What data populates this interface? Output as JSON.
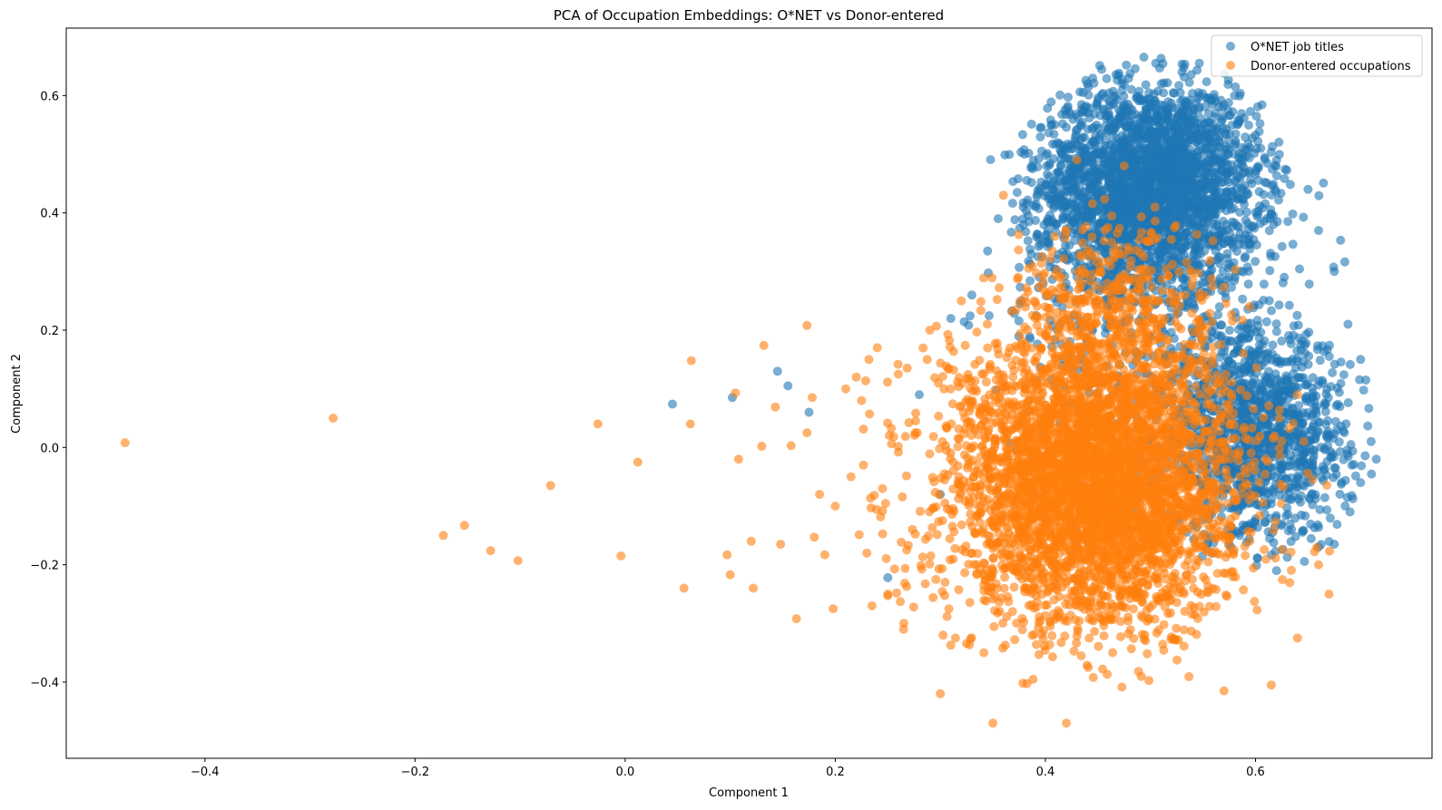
{
  "chart_data": {
    "type": "scatter",
    "title": "PCA of Occupation Embeddings: O*NET vs Donor-entered",
    "xlabel": "Component 1",
    "ylabel": "Component 2",
    "xlim": [
      -0.532,
      0.768
    ],
    "ylim": [
      -0.53,
      0.715
    ],
    "xticks": [
      -0.4,
      -0.2,
      0.0,
      0.2,
      0.4,
      0.6
    ],
    "xtick_labels": [
      "−0.4",
      "−0.2",
      "0.0",
      "0.2",
      "0.4",
      "0.6"
    ],
    "yticks": [
      -0.4,
      -0.2,
      0.0,
      0.2,
      0.4,
      0.6
    ],
    "ytick_labels": [
      "−0.4",
      "−0.2",
      "0.0",
      "0.2",
      "0.4",
      "0.6"
    ],
    "grid": false,
    "legend_position": "top-right",
    "marker_alpha": 0.6,
    "series": [
      {
        "name": "O*NET job titles",
        "color": "#1f77b4",
        "points": [
          [
            0.045,
            0.074
          ],
          [
            0.102,
            0.085
          ],
          [
            0.145,
            0.13
          ],
          [
            0.155,
            0.105
          ],
          [
            0.175,
            0.06
          ],
          [
            0.25,
            -0.222
          ],
          [
            0.31,
            0.22
          ],
          [
            0.33,
            0.26
          ],
          [
            0.345,
            0.335
          ],
          [
            0.355,
            0.39
          ],
          [
            0.38,
            0.5
          ],
          [
            0.395,
            0.545
          ],
          [
            0.44,
            0.62
          ],
          [
            0.47,
            0.638
          ],
          [
            0.505,
            0.655
          ],
          [
            0.53,
            0.64
          ],
          [
            0.58,
            0.6
          ],
          [
            0.605,
            0.51
          ],
          [
            0.62,
            0.49
          ],
          [
            0.65,
            0.44
          ],
          [
            0.66,
            0.37
          ],
          [
            0.675,
            0.3
          ],
          [
            0.688,
            0.21
          ],
          [
            0.7,
            0.15
          ],
          [
            0.705,
            0.115
          ],
          [
            0.71,
            0.01
          ],
          [
            0.715,
            -0.02
          ],
          [
            0.7,
            -0.06
          ],
          [
            0.69,
            -0.11
          ],
          [
            0.675,
            -0.165
          ],
          [
            0.66,
            -0.17
          ],
          [
            0.62,
            -0.21
          ],
          [
            0.3,
            -0.08
          ],
          [
            0.28,
            0.09
          ]
        ],
        "clusters": [
          {
            "center": [
              0.5,
              0.45
            ],
            "spread": [
              0.052,
              0.085
            ],
            "count": 2600
          },
          {
            "center": [
              0.6,
              0.02
            ],
            "spread": [
              0.045,
              0.09
            ],
            "count": 1300
          },
          {
            "center": [
              0.5,
              0.28
            ],
            "spread": [
              0.075,
              0.15
            ],
            "count": 700
          }
        ]
      },
      {
        "name": "Donor-entered occupations",
        "color": "#ff7f0e",
        "points": [
          [
            -0.476,
            0.008
          ],
          [
            -0.278,
            0.05
          ],
          [
            -0.173,
            -0.15
          ],
          [
            -0.153,
            -0.133
          ],
          [
            -0.128,
            -0.176
          ],
          [
            -0.102,
            -0.193
          ],
          [
            -0.071,
            -0.065
          ],
          [
            -0.026,
            0.04
          ],
          [
            -0.004,
            -0.185
          ],
          [
            0.012,
            -0.025
          ],
          [
            0.056,
            -0.24
          ],
          [
            0.062,
            0.04
          ],
          [
            0.063,
            0.148
          ],
          [
            0.097,
            -0.183
          ],
          [
            0.1,
            -0.217
          ],
          [
            0.105,
            0.093
          ],
          [
            0.108,
            -0.02
          ],
          [
            0.12,
            -0.16
          ],
          [
            0.122,
            -0.24
          ],
          [
            0.13,
            0.002
          ],
          [
            0.132,
            0.174
          ],
          [
            0.143,
            0.069
          ],
          [
            0.148,
            -0.165
          ],
          [
            0.158,
            0.003
          ],
          [
            0.163,
            -0.292
          ],
          [
            0.173,
            0.208
          ],
          [
            0.173,
            0.025
          ],
          [
            0.178,
            0.085
          ],
          [
            0.18,
            -0.153
          ],
          [
            0.185,
            -0.08
          ],
          [
            0.19,
            -0.183
          ],
          [
            0.198,
            -0.275
          ],
          [
            0.2,
            -0.1
          ],
          [
            0.21,
            0.1
          ],
          [
            0.215,
            -0.05
          ],
          [
            0.22,
            0.12
          ],
          [
            0.225,
            0.08
          ],
          [
            0.23,
            -0.18
          ],
          [
            0.232,
            0.15
          ],
          [
            0.24,
            0.17
          ],
          [
            0.245,
            -0.07
          ],
          [
            0.25,
            -0.25
          ],
          [
            0.235,
            -0.27
          ],
          [
            0.26,
            0.125
          ],
          [
            0.265,
            -0.31
          ],
          [
            0.29,
            0.2
          ],
          [
            0.3,
            -0.42
          ],
          [
            0.32,
            0.25
          ],
          [
            0.35,
            -0.47
          ],
          [
            0.36,
            0.43
          ],
          [
            0.42,
            -0.47
          ],
          [
            0.43,
            0.49
          ],
          [
            0.475,
            0.48
          ],
          [
            0.57,
            -0.415
          ],
          [
            0.615,
            -0.405
          ],
          [
            0.64,
            -0.325
          ],
          [
            0.66,
            -0.2
          ],
          [
            0.67,
            -0.25
          ],
          [
            0.64,
            0.09
          ]
        ],
        "clusters": [
          {
            "center": [
              0.45,
              -0.06
            ],
            "spread": [
              0.06,
              0.12
            ],
            "count": 3200
          },
          {
            "center": [
              0.44,
              -0.06
            ],
            "spread": [
              0.095,
              0.14
            ],
            "count": 1300
          },
          {
            "center": [
              0.465,
              0.24
            ],
            "spread": [
              0.05,
              0.08
            ],
            "count": 450
          }
        ]
      }
    ]
  }
}
